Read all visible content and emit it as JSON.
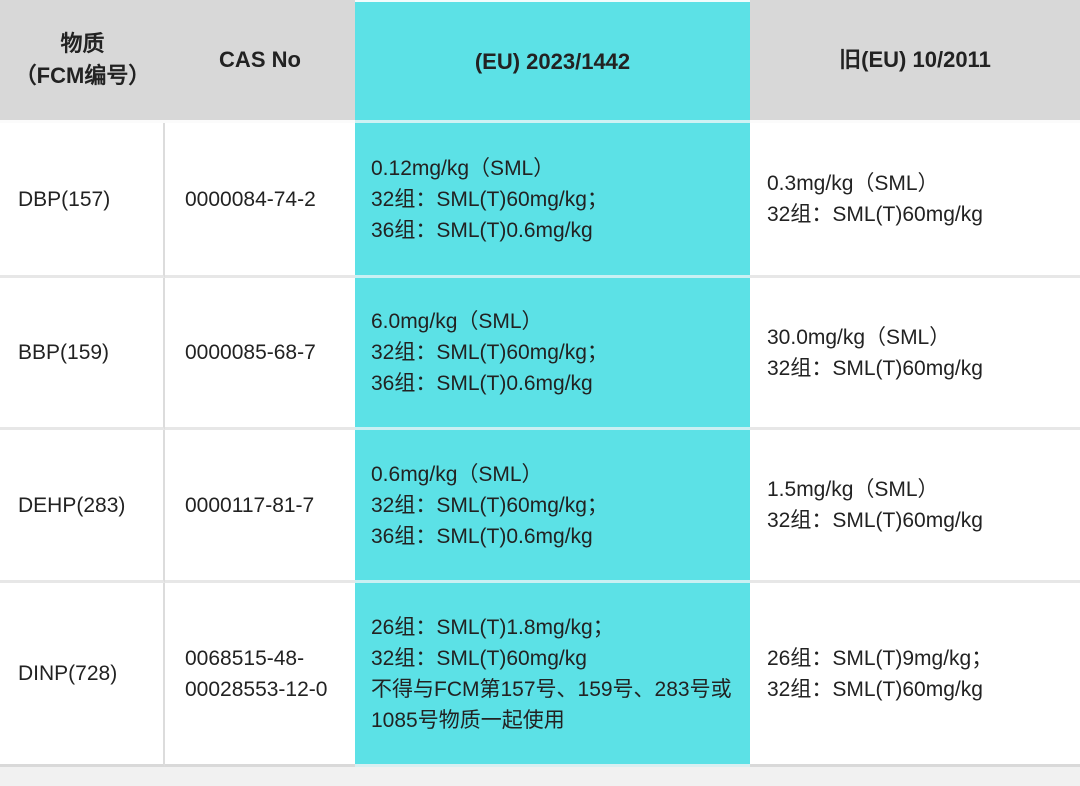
{
  "table": {
    "colors": {
      "highlight_cyan": "#5ce1e6",
      "header_gray": "#d8d8d8",
      "page_background": "#f1f1f1",
      "text": "#222222"
    },
    "headers": {
      "substance_line1": "物质",
      "substance_line2": "（FCM编号）",
      "cas": "CAS No",
      "eu2023": "(EU) 2023/1442",
      "eu2011": "旧(EU) 10/2011"
    },
    "rows": [
      {
        "substance": "DBP(157)",
        "cas": [
          "0000084-74-2"
        ],
        "eu2023": [
          "0.12mg/kg（SML）",
          "32组：SML(T)60mg/kg；",
          "36组：SML(T)0.6mg/kg"
        ],
        "eu2011": [
          "0.3mg/kg（SML）",
          "32组：SML(T)60mg/kg"
        ]
      },
      {
        "substance": "BBP(159)",
        "cas": [
          "0000085-68-7"
        ],
        "eu2023": [
          "6.0mg/kg（SML）",
          "32组：SML(T)60mg/kg；",
          "36组：SML(T)0.6mg/kg"
        ],
        "eu2011": [
          "30.0mg/kg（SML）",
          "32组：SML(T)60mg/kg"
        ]
      },
      {
        "substance": "DEHP(283)",
        "cas": [
          "0000117-81-7"
        ],
        "eu2023": [
          "0.6mg/kg（SML）",
          "32组：SML(T)60mg/kg；",
          "36组：SML(T)0.6mg/kg"
        ],
        "eu2011": [
          "1.5mg/kg（SML）",
          "32组：SML(T)60mg/kg"
        ]
      },
      {
        "substance": "DINP(728)",
        "cas": [
          "0068515-48-",
          "00028553-12-0"
        ],
        "eu2023": [
          "26组：SML(T)1.8mg/kg；",
          "32组：SML(T)60mg/kg",
          "不得与FCM第157号、159号、283号或1085号物质一起使用"
        ],
        "eu2011": [
          "26组：SML(T)9mg/kg；",
          "32组：SML(T)60mg/kg"
        ]
      }
    ]
  }
}
